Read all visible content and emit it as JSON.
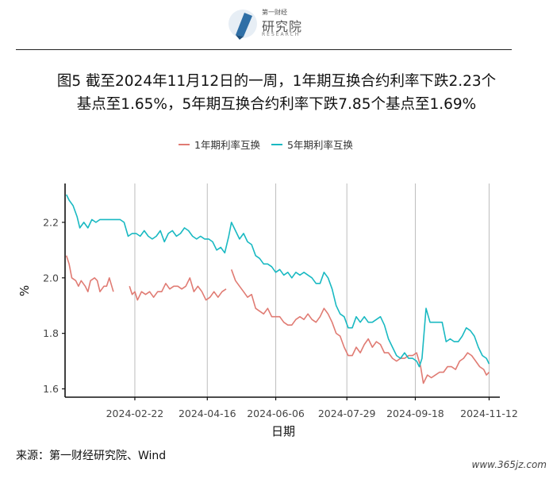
{
  "header": {
    "logo_small": "第一财经",
    "logo_name": "研究院",
    "logo_sub": "RESEARCH"
  },
  "title_line1": "图5  截至2024年11月12日的一周，1年期互换合约利率下跌2.23个",
  "title_line2": "基点至1.65%，5年期互换合约利率下跌7.85个基点至1.69%",
  "source": "来源：第一财经研究院、Wind",
  "watermark": "www.365jz.com",
  "chart_data": {
    "type": "line",
    "xlabel": "日期",
    "ylabel": "%",
    "ylim": [
      1.57,
      2.34
    ],
    "xlim": [
      "2024-01-01",
      "2024-11-20"
    ],
    "y_ticks": [
      1.6,
      1.8,
      2.0,
      2.2
    ],
    "y_tick_labels": [
      "1.6",
      "1.8",
      "2.0",
      "2.2"
    ],
    "x_ticks": [
      "2024-02-22",
      "2024-04-16",
      "2024-06-06",
      "2024-07-29",
      "2024-09-18",
      "2024-11-12"
    ],
    "grid": "vertical",
    "legend_position": "top",
    "series": [
      {
        "name": "1年期利率互换",
        "color": "#e07b73",
        "segments": [
          [
            [
              "2024-01-02",
              2.08
            ],
            [
              "2024-01-04",
              2.05
            ],
            [
              "2024-01-06",
              2.0
            ],
            [
              "2024-01-09",
              1.99
            ],
            [
              "2024-01-11",
              1.97
            ],
            [
              "2024-01-13",
              1.99
            ],
            [
              "2024-01-16",
              1.97
            ],
            [
              "2024-01-18",
              1.95
            ],
            [
              "2024-01-20",
              1.99
            ],
            [
              "2024-01-23",
              2.0
            ],
            [
              "2024-01-25",
              1.99
            ],
            [
              "2024-01-27",
              1.95
            ],
            [
              "2024-01-30",
              1.97
            ],
            [
              "2024-02-01",
              1.97
            ],
            [
              "2024-02-03",
              2.0
            ],
            [
              "2024-02-06",
              1.95
            ]
          ],
          [
            [
              "2024-02-18",
              1.97
            ],
            [
              "2024-02-20",
              1.94
            ],
            [
              "2024-02-22",
              1.95
            ],
            [
              "2024-02-24",
              1.92
            ],
            [
              "2024-02-27",
              1.95
            ],
            [
              "2024-03-01",
              1.94
            ],
            [
              "2024-03-04",
              1.95
            ],
            [
              "2024-03-07",
              1.93
            ],
            [
              "2024-03-10",
              1.95
            ],
            [
              "2024-03-13",
              1.95
            ],
            [
              "2024-03-16",
              1.98
            ],
            [
              "2024-03-19",
              1.96
            ],
            [
              "2024-03-22",
              1.97
            ],
            [
              "2024-03-25",
              1.97
            ],
            [
              "2024-03-28",
              1.96
            ],
            [
              "2024-03-31",
              1.97
            ],
            [
              "2024-04-03",
              2.0
            ],
            [
              "2024-04-06",
              1.95
            ],
            [
              "2024-04-09",
              1.97
            ],
            [
              "2024-04-12",
              1.95
            ],
            [
              "2024-04-15",
              1.92
            ],
            [
              "2024-04-18",
              1.93
            ],
            [
              "2024-04-21",
              1.95
            ],
            [
              "2024-04-24",
              1.93
            ],
            [
              "2024-04-27",
              1.95
            ],
            [
              "2024-04-30",
              1.96
            ]
          ],
          [
            [
              "2024-05-04",
              2.03
            ],
            [
              "2024-05-07",
              1.99
            ],
            [
              "2024-05-10",
              1.97
            ],
            [
              "2024-05-13",
              1.95
            ],
            [
              "2024-05-16",
              1.93
            ],
            [
              "2024-05-19",
              1.94
            ],
            [
              "2024-05-22",
              1.89
            ],
            [
              "2024-05-25",
              1.88
            ],
            [
              "2024-05-28",
              1.87
            ],
            [
              "2024-05-31",
              1.89
            ],
            [
              "2024-06-03",
              1.86
            ],
            [
              "2024-06-06",
              1.86
            ],
            [
              "2024-06-09",
              1.86
            ],
            [
              "2024-06-12",
              1.84
            ],
            [
              "2024-06-15",
              1.83
            ],
            [
              "2024-06-18",
              1.83
            ],
            [
              "2024-06-21",
              1.85
            ],
            [
              "2024-06-24",
              1.86
            ],
            [
              "2024-06-27",
              1.85
            ],
            [
              "2024-06-30",
              1.87
            ],
            [
              "2024-07-03",
              1.85
            ],
            [
              "2024-07-06",
              1.84
            ],
            [
              "2024-07-09",
              1.86
            ],
            [
              "2024-07-12",
              1.89
            ],
            [
              "2024-07-15",
              1.87
            ],
            [
              "2024-07-18",
              1.84
            ],
            [
              "2024-07-21",
              1.8
            ],
            [
              "2024-07-24",
              1.79
            ],
            [
              "2024-07-27",
              1.75
            ],
            [
              "2024-07-30",
              1.72
            ],
            [
              "2024-08-02",
              1.72
            ],
            [
              "2024-08-05",
              1.75
            ],
            [
              "2024-08-08",
              1.73
            ],
            [
              "2024-08-11",
              1.76
            ],
            [
              "2024-08-14",
              1.78
            ],
            [
              "2024-08-17",
              1.75
            ],
            [
              "2024-08-20",
              1.77
            ],
            [
              "2024-08-23",
              1.76
            ],
            [
              "2024-08-26",
              1.73
            ],
            [
              "2024-08-29",
              1.73
            ],
            [
              "2024-09-01",
              1.71
            ],
            [
              "2024-09-04",
              1.7
            ],
            [
              "2024-09-07",
              1.71
            ],
            [
              "2024-09-10",
              1.71
            ],
            [
              "2024-09-13",
              1.72
            ],
            [
              "2024-09-16",
              1.72
            ],
            [
              "2024-09-19",
              1.73
            ],
            [
              "2024-09-22",
              1.68
            ],
            [
              "2024-09-24",
              1.62
            ],
            [
              "2024-09-27",
              1.65
            ],
            [
              "2024-09-30",
              1.64
            ],
            [
              "2024-10-03",
              1.65
            ],
            [
              "2024-10-06",
              1.66
            ],
            [
              "2024-10-09",
              1.66
            ],
            [
              "2024-10-12",
              1.68
            ],
            [
              "2024-10-15",
              1.68
            ],
            [
              "2024-10-18",
              1.67
            ],
            [
              "2024-10-21",
              1.7
            ],
            [
              "2024-10-24",
              1.71
            ],
            [
              "2024-10-27",
              1.73
            ],
            [
              "2024-10-30",
              1.72
            ],
            [
              "2024-11-02",
              1.7
            ],
            [
              "2024-11-05",
              1.68
            ],
            [
              "2024-11-08",
              1.67
            ],
            [
              "2024-11-10",
              1.65
            ],
            [
              "2024-11-12",
              1.66
            ]
          ]
        ]
      },
      {
        "name": "5年期利率互换",
        "color": "#19b9c2",
        "segments": [
          [
            [
              "2024-01-02",
              2.3
            ],
            [
              "2024-01-04",
              2.28
            ],
            [
              "2024-01-07",
              2.26
            ],
            [
              "2024-01-10",
              2.22
            ],
            [
              "2024-01-12",
              2.18
            ],
            [
              "2024-01-15",
              2.2
            ],
            [
              "2024-01-18",
              2.18
            ],
            [
              "2024-01-21",
              2.21
            ],
            [
              "2024-01-24",
              2.2
            ],
            [
              "2024-01-27",
              2.21
            ],
            [
              "2024-01-30",
              2.21
            ],
            [
              "2024-02-02",
              2.21
            ],
            [
              "2024-02-05",
              2.21
            ],
            [
              "2024-02-08",
              2.21
            ],
            [
              "2024-02-11",
              2.21
            ],
            [
              "2024-02-14",
              2.2
            ],
            [
              "2024-02-17",
              2.15
            ],
            [
              "2024-02-20",
              2.16
            ],
            [
              "2024-02-23",
              2.16
            ],
            [
              "2024-02-26",
              2.15
            ],
            [
              "2024-02-29",
              2.17
            ],
            [
              "2024-03-03",
              2.15
            ],
            [
              "2024-03-06",
              2.14
            ],
            [
              "2024-03-09",
              2.15
            ],
            [
              "2024-03-12",
              2.17
            ],
            [
              "2024-03-15",
              2.13
            ],
            [
              "2024-03-18",
              2.16
            ],
            [
              "2024-03-21",
              2.17
            ],
            [
              "2024-03-24",
              2.15
            ],
            [
              "2024-03-27",
              2.16
            ],
            [
              "2024-03-30",
              2.18
            ],
            [
              "2024-04-02",
              2.17
            ],
            [
              "2024-04-05",
              2.15
            ],
            [
              "2024-04-08",
              2.14
            ],
            [
              "2024-04-11",
              2.15
            ],
            [
              "2024-04-14",
              2.14
            ],
            [
              "2024-04-17",
              2.14
            ],
            [
              "2024-04-20",
              2.13
            ],
            [
              "2024-04-23",
              2.1
            ],
            [
              "2024-04-26",
              2.11
            ],
            [
              "2024-04-29",
              2.09
            ],
            [
              "2024-05-02",
              2.15
            ],
            [
              "2024-05-04",
              2.2
            ],
            [
              "2024-05-07",
              2.17
            ],
            [
              "2024-05-10",
              2.14
            ],
            [
              "2024-05-13",
              2.16
            ],
            [
              "2024-05-16",
              2.13
            ],
            [
              "2024-05-19",
              2.12
            ],
            [
              "2024-05-22",
              2.08
            ],
            [
              "2024-05-25",
              2.07
            ],
            [
              "2024-05-28",
              2.05
            ],
            [
              "2024-05-31",
              2.05
            ],
            [
              "2024-06-03",
              2.04
            ],
            [
              "2024-06-06",
              2.02
            ],
            [
              "2024-06-09",
              2.03
            ],
            [
              "2024-06-12",
              2.01
            ],
            [
              "2024-06-15",
              2.02
            ],
            [
              "2024-06-18",
              2.0
            ],
            [
              "2024-06-21",
              2.02
            ],
            [
              "2024-06-24",
              2.01
            ],
            [
              "2024-06-27",
              2.02
            ],
            [
              "2024-06-30",
              2.01
            ],
            [
              "2024-07-03",
              2.0
            ],
            [
              "2024-07-06",
              1.98
            ],
            [
              "2024-07-09",
              1.98
            ],
            [
              "2024-07-12",
              2.02
            ],
            [
              "2024-07-15",
              2.0
            ],
            [
              "2024-07-18",
              1.96
            ],
            [
              "2024-07-21",
              1.9
            ],
            [
              "2024-07-24",
              1.87
            ],
            [
              "2024-07-27",
              1.86
            ],
            [
              "2024-07-30",
              1.82
            ],
            [
              "2024-08-02",
              1.82
            ],
            [
              "2024-08-05",
              1.86
            ],
            [
              "2024-08-08",
              1.84
            ],
            [
              "2024-08-11",
              1.86
            ],
            [
              "2024-08-14",
              1.84
            ],
            [
              "2024-08-17",
              1.84
            ],
            [
              "2024-08-20",
              1.85
            ],
            [
              "2024-08-23",
              1.86
            ],
            [
              "2024-08-26",
              1.83
            ],
            [
              "2024-08-29",
              1.78
            ],
            [
              "2024-09-01",
              1.75
            ],
            [
              "2024-09-04",
              1.72
            ],
            [
              "2024-09-07",
              1.71
            ],
            [
              "2024-09-10",
              1.73
            ],
            [
              "2024-09-13",
              1.71
            ],
            [
              "2024-09-16",
              1.71
            ],
            [
              "2024-09-19",
              1.7
            ],
            [
              "2024-09-21",
              1.68
            ],
            [
              "2024-09-23",
              1.71
            ],
            [
              "2024-09-26",
              1.89
            ],
            [
              "2024-09-29",
              1.84
            ],
            [
              "2024-10-02",
              1.84
            ],
            [
              "2024-10-05",
              1.84
            ],
            [
              "2024-10-08",
              1.84
            ],
            [
              "2024-10-11",
              1.77
            ],
            [
              "2024-10-14",
              1.78
            ],
            [
              "2024-10-17",
              1.77
            ],
            [
              "2024-10-20",
              1.77
            ],
            [
              "2024-10-23",
              1.79
            ],
            [
              "2024-10-26",
              1.82
            ],
            [
              "2024-10-29",
              1.81
            ],
            [
              "2024-11-01",
              1.79
            ],
            [
              "2024-11-04",
              1.75
            ],
            [
              "2024-11-07",
              1.72
            ],
            [
              "2024-11-10",
              1.71
            ],
            [
              "2024-11-12",
              1.69
            ]
          ]
        ]
      }
    ]
  }
}
